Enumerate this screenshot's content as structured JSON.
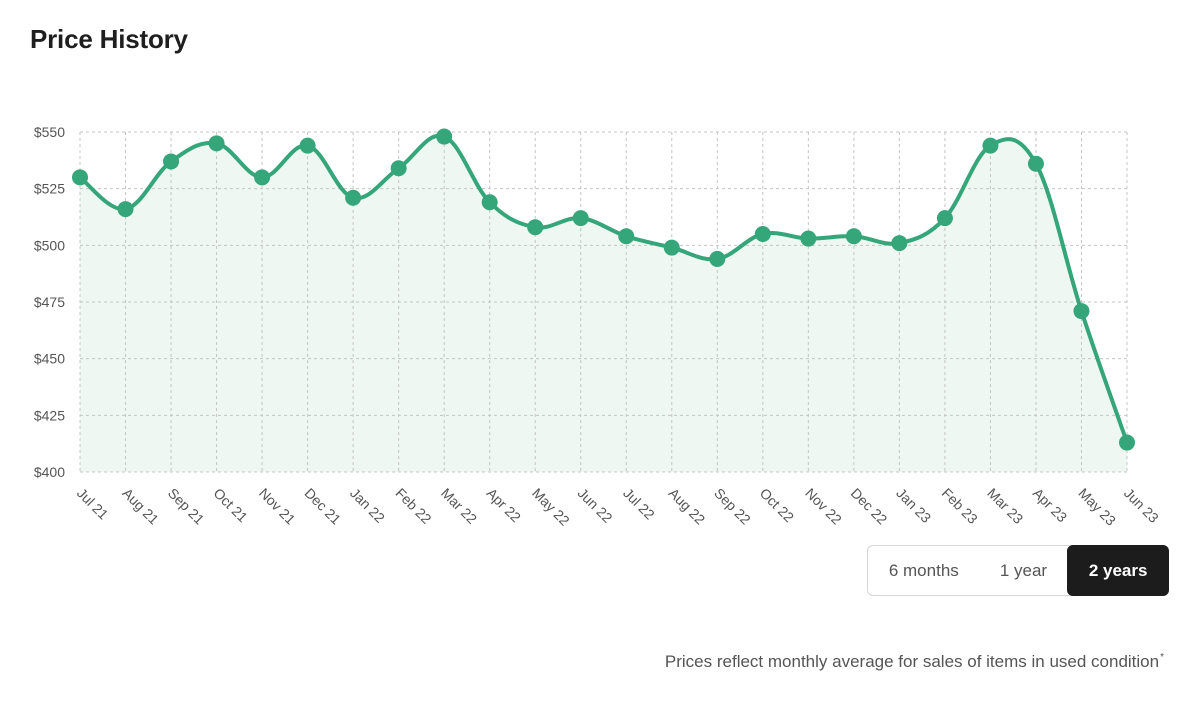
{
  "title": "Price History",
  "colors": {
    "line": "#35a57a",
    "area": "#eef7f2",
    "grid": "#c4c4c4",
    "active_button_bg": "#1c1c1c"
  },
  "chart_data": {
    "type": "area",
    "title": "Price History",
    "xlabel": "",
    "ylabel": "",
    "ylim": [
      400,
      550
    ],
    "y_ticks": [
      "$550",
      "$525",
      "$500",
      "$475",
      "$450",
      "$425",
      "$400"
    ],
    "categories": [
      "Jul 21",
      "Aug 21",
      "Sep 21",
      "Oct 21",
      "Nov 21",
      "Dec 21",
      "Jan 22",
      "Feb 22",
      "Mar 22",
      "Apr 22",
      "May 22",
      "Jun 22",
      "Jul 22",
      "Aug 22",
      "Sep 22",
      "Oct 22",
      "Nov 22",
      "Dec 22",
      "Jan 23",
      "Feb 23",
      "Mar 23",
      "Apr 23",
      "May 23",
      "Jun 23"
    ],
    "series": [
      {
        "values": [
          530,
          516,
          537,
          545,
          530,
          544,
          521,
          534,
          548,
          519,
          508,
          512,
          504,
          499,
          494,
          505,
          503,
          504,
          501,
          512,
          544,
          536,
          471,
          413
        ]
      }
    ],
    "grid": true,
    "curve": "smooth"
  },
  "range_toggle": {
    "options": [
      "6 months",
      "1 year",
      "2 years"
    ],
    "selected": "2 years"
  },
  "footnote": {
    "text": "Prices reflect monthly average for sales of items in used condition",
    "mark": "*"
  }
}
